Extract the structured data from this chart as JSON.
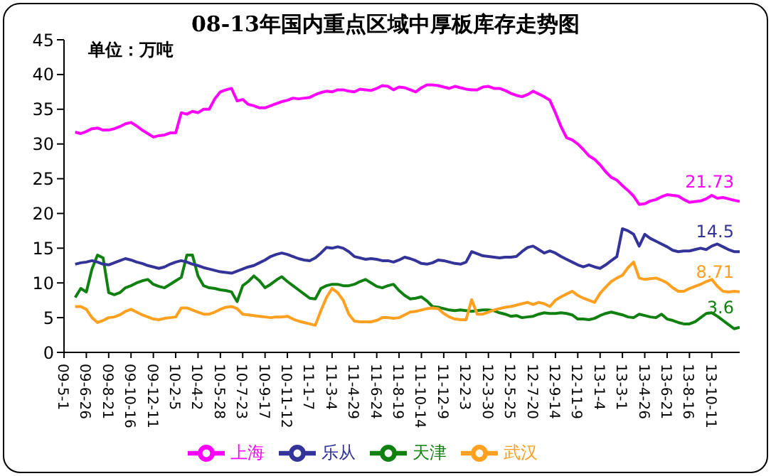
{
  "chart_data": {
    "type": "line",
    "title": "08-13年国内重点区域中厚板库存走势图",
    "ylabel": "单位：万吨",
    "categories": [
      "09-5-1",
      null,
      null,
      null,
      "09-6-26",
      null,
      null,
      null,
      "09-8-21",
      null,
      null,
      null,
      "09-10-16",
      null,
      null,
      null,
      "09-12-11",
      null,
      null,
      null,
      "10-2-5",
      null,
      null,
      null,
      "10-4-2",
      null,
      null,
      null,
      "10-5-28",
      null,
      null,
      null,
      "10-7-23",
      null,
      null,
      null,
      "10-9-17",
      null,
      null,
      null,
      "10-11-12",
      null,
      null,
      null,
      "11-1-7",
      null,
      null,
      null,
      "11-3-4",
      null,
      null,
      null,
      "11-4-29",
      null,
      null,
      null,
      "11-6-24",
      null,
      null,
      null,
      "11-8-19",
      null,
      null,
      null,
      "11-10-14",
      null,
      null,
      null,
      "11-12-9",
      null,
      null,
      null,
      "12-2-3",
      null,
      null,
      null,
      "12-3-30",
      null,
      null,
      null,
      "12-5-25",
      null,
      null,
      null,
      "12-7-20",
      null,
      null,
      null,
      "12-9-14",
      null,
      null,
      null,
      "12-11-9",
      null,
      null,
      null,
      "13-1-4",
      null,
      null,
      null,
      "13-3-1",
      null,
      null,
      null,
      "13-4-26",
      null,
      null,
      null,
      "13-6-21",
      null,
      null,
      null,
      "13-8-16",
      null,
      null,
      null,
      "13-10-11",
      null,
      null,
      null,
      null,
      null
    ],
    "series": [
      {
        "name": "上海",
        "color": "#ff00ff",
        "values": [
          null,
          null,
          31.7,
          31.5,
          31.8,
          32.2,
          32.3,
          32,
          32,
          32.2,
          32.5,
          32.9,
          33.1,
          32.6,
          32,
          31.5,
          31,
          31.2,
          31.3,
          31.6,
          31.6,
          34.5,
          34.3,
          34.7,
          34.5,
          35,
          35,
          36.5,
          37.5,
          37.8,
          38,
          36.2,
          36.4,
          35.7,
          35.5,
          35.2,
          35.2,
          35.5,
          35.8,
          36.1,
          36.3,
          36.6,
          36.5,
          36.6,
          36.7,
          37.1,
          37.4,
          37.6,
          37.5,
          37.8,
          37.8,
          37.6,
          37.5,
          37.9,
          37.8,
          37.7,
          38,
          38.4,
          38.3,
          37.8,
          38.2,
          38.1,
          37.8,
          37.5,
          38.1,
          38.5,
          38.5,
          38.4,
          38.2,
          38,
          38.3,
          38.1,
          37.9,
          37.8,
          37.8,
          38.2,
          38.3,
          38,
          38,
          37.7,
          37.3,
          37,
          36.8,
          37.1,
          37.6,
          37.2,
          36.8,
          36.3,
          34.5,
          32.5,
          30.9,
          30.6,
          30,
          29.2,
          28.3,
          27.8,
          27,
          26,
          25.2,
          24.8,
          24,
          23.3,
          22.5,
          21.3,
          21.4,
          21.8,
          22,
          22.4,
          22.7,
          22.6,
          22.5,
          22,
          21.6,
          21.7,
          21.8,
          22.1,
          22.6,
          22.2,
          22.3,
          22.1,
          21.9,
          21.73
        ],
        "value_labels": [
          null,
          null,
          null,
          null,
          null,
          null,
          null,
          null,
          null,
          null,
          null,
          null,
          null,
          null,
          null,
          null,
          null,
          null,
          null,
          null,
          null,
          null,
          null,
          null,
          null,
          null,
          null,
          null,
          null,
          null,
          null,
          null,
          null,
          null,
          null,
          null,
          null,
          null,
          null,
          null,
          null,
          null,
          null,
          null,
          null,
          null,
          null,
          null,
          null,
          null,
          null,
          null,
          null,
          null,
          null,
          null,
          null,
          null,
          null,
          null,
          null,
          null,
          null,
          null,
          null,
          null,
          null,
          null,
          null,
          null,
          null,
          null,
          null,
          null,
          null,
          null,
          null,
          null,
          null,
          null,
          null,
          null,
          null,
          null,
          null,
          null,
          null,
          null,
          null,
          null,
          null,
          null,
          null,
          null,
          null,
          null,
          null,
          null,
          null,
          null,
          null,
          null,
          null,
          null,
          null,
          null,
          null,
          null,
          null,
          null,
          null,
          null,
          null,
          null,
          null,
          null,
          null,
          null,
          null,
          null,
          null,
          "21.73"
        ]
      },
      {
        "name": "天津",
        "color": "#108010",
        "values": [
          null,
          null,
          7.9,
          9.2,
          8.7,
          12,
          14,
          13.6,
          8.6,
          8.3,
          8.6,
          9.3,
          9.6,
          10,
          10.3,
          10.5,
          9.8,
          9.5,
          9.3,
          9.8,
          10.3,
          10.8,
          14,
          14,
          11,
          9.6,
          9.3,
          9.2,
          9,
          8.9,
          8.7,
          7.3,
          9.6,
          10.2,
          11,
          10.3,
          9.3,
          9.8,
          10.4,
          10.9,
          10.2,
          9.6,
          9,
          8.4,
          7.8,
          7.7,
          9.2,
          9.6,
          9.8,
          9.8,
          9.6,
          9.6,
          9.8,
          10.2,
          10.5,
          10,
          9.5,
          9.3,
          9.6,
          9.8,
          8.9,
          8.2,
          7.7,
          7.8,
          8,
          7.4,
          6.6,
          6.5,
          6.3,
          6.1,
          6,
          6.1,
          6,
          5.9,
          6,
          6.1,
          6.1,
          6,
          5.7,
          5.5,
          5.2,
          5.3,
          5,
          5.1,
          5.2,
          5.5,
          5.7,
          5.6,
          5.6,
          5.7,
          5.6,
          5.4,
          4.8,
          4.8,
          4.7,
          4.9,
          5.3,
          5.6,
          5.8,
          5.6,
          5.4,
          5.1,
          5,
          5.5,
          5.3,
          5.1,
          5,
          5.5,
          4.8,
          4.6,
          4.3,
          4.1,
          4.1,
          4.4,
          5,
          5.6,
          5.7,
          5.2,
          4.6,
          4,
          3.4,
          3.6
        ],
        "value_labels": [
          null,
          null,
          null,
          null,
          null,
          null,
          null,
          null,
          null,
          null,
          null,
          null,
          null,
          null,
          null,
          null,
          null,
          null,
          null,
          null,
          null,
          null,
          null,
          null,
          null,
          null,
          null,
          null,
          null,
          null,
          null,
          null,
          null,
          null,
          null,
          null,
          null,
          null,
          null,
          null,
          null,
          null,
          null,
          null,
          null,
          null,
          null,
          null,
          null,
          null,
          null,
          null,
          null,
          null,
          null,
          null,
          null,
          null,
          null,
          null,
          null,
          null,
          null,
          null,
          null,
          null,
          null,
          null,
          null,
          null,
          null,
          null,
          null,
          null,
          null,
          null,
          null,
          null,
          null,
          null,
          null,
          null,
          null,
          null,
          null,
          null,
          null,
          null,
          null,
          null,
          null,
          null,
          null,
          null,
          null,
          null,
          null,
          null,
          null,
          null,
          null,
          null,
          null,
          null,
          null,
          null,
          null,
          null,
          null,
          null,
          null,
          null,
          null,
          null,
          null,
          null,
          null,
          null,
          null,
          null,
          null,
          "3.6"
        ]
      },
      {
        "name": "武汉",
        "color": "#ffa020",
        "values": [
          null,
          null,
          6.6,
          6.6,
          6.2,
          5,
          4.3,
          4.6,
          5,
          5.1,
          5.4,
          5.9,
          6.2,
          5.8,
          5.4,
          5.1,
          4.8,
          4.7,
          4.9,
          5,
          5.1,
          6.4,
          6.4,
          6.1,
          5.8,
          5.5,
          5.5,
          5.8,
          6.2,
          6.5,
          6.6,
          6.3,
          5.5,
          5.4,
          5.3,
          5.2,
          5.1,
          5,
          5.1,
          5.1,
          5.2,
          4.8,
          4.5,
          4.3,
          4.1,
          3.9,
          6,
          7.9,
          9.2,
          8.6,
          7.5,
          5.5,
          4.5,
          4.4,
          4.4,
          4.4,
          4.6,
          5,
          5,
          4.9,
          5,
          5.4,
          5.8,
          5.9,
          6.1,
          6.3,
          6.4,
          6.3,
          5.6,
          5.1,
          4.8,
          4.7,
          4.7,
          7.6,
          5.5,
          5.5,
          5.8,
          6.1,
          6.3,
          6.5,
          6.6,
          6.8,
          7,
          7.2,
          6.9,
          7.2,
          7,
          6.6,
          7.5,
          8,
          8.4,
          8.8,
          8.2,
          7.8,
          7.5,
          7.2,
          8.5,
          9.4,
          10.2,
          10.7,
          11.1,
          12.2,
          13,
          10.7,
          10.5,
          10.6,
          10.7,
          10.4,
          10,
          9.3,
          8.8,
          8.8,
          9.2,
          9.5,
          9.8,
          10.2,
          10.5,
          9.5,
          8.8,
          8.7,
          8.8,
          8.71
        ],
        "value_labels": [
          null,
          null,
          null,
          null,
          null,
          null,
          null,
          null,
          null,
          null,
          null,
          null,
          null,
          null,
          null,
          null,
          null,
          null,
          null,
          null,
          null,
          null,
          null,
          null,
          null,
          null,
          null,
          null,
          null,
          null,
          null,
          null,
          null,
          null,
          null,
          null,
          null,
          null,
          null,
          null,
          null,
          null,
          null,
          null,
          null,
          null,
          null,
          null,
          null,
          null,
          null,
          null,
          null,
          null,
          null,
          null,
          null,
          null,
          null,
          null,
          null,
          null,
          null,
          null,
          null,
          null,
          null,
          null,
          null,
          null,
          null,
          null,
          null,
          null,
          null,
          null,
          null,
          null,
          null,
          null,
          null,
          null,
          null,
          null,
          null,
          null,
          null,
          null,
          null,
          null,
          null,
          null,
          null,
          null,
          null,
          null,
          null,
          null,
          null,
          null,
          null,
          null,
          null,
          null,
          null,
          null,
          null,
          null,
          null,
          null,
          null,
          null,
          null,
          null,
          null,
          null,
          null,
          null,
          null,
          null,
          null,
          "8.71"
        ]
      },
      {
        "name": "乐从",
        "color": "#333399",
        "values": [
          null,
          null,
          12.7,
          12.9,
          13,
          13.2,
          13,
          12.7,
          12.6,
          12.9,
          13.2,
          13.5,
          13.3,
          13,
          12.8,
          12.5,
          12.3,
          12.1,
          12.3,
          12.7,
          13,
          13.2,
          13,
          12.7,
          12.5,
          12.2,
          12,
          11.8,
          11.6,
          11.5,
          11.4,
          11.7,
          12,
          12.3,
          12.5,
          12.9,
          13.3,
          13.8,
          14.1,
          14.3,
          14.1,
          13.8,
          13.5,
          13.3,
          13.2,
          13.6,
          14.3,
          15.1,
          15,
          15.2,
          15,
          14.5,
          13.8,
          13.6,
          13.4,
          13.5,
          13.4,
          13.2,
          13.2,
          13,
          13.3,
          13.7,
          13.5,
          13.2,
          12.8,
          12.7,
          12.9,
          13.3,
          13.2,
          13,
          12.8,
          12.7,
          13,
          14.5,
          14.2,
          13.9,
          13.8,
          13.7,
          13.6,
          13.7,
          13.7,
          13.8,
          14.5,
          15.1,
          15.3,
          14.8,
          14.3,
          14.6,
          14.3,
          13.8,
          13.4,
          13,
          12.6,
          12.3,
          12.6,
          12.3,
          12.1,
          12.6,
          13.2,
          13.8,
          17.8,
          17.5,
          17,
          15.3,
          17,
          16.4,
          16,
          15.6,
          15.2,
          14.7,
          14.5,
          14.6,
          14.6,
          14.8,
          15,
          14.8,
          15.3,
          15.6,
          15.2,
          14.8,
          14.5,
          14.5
        ],
        "value_labels": [
          null,
          null,
          null,
          null,
          null,
          null,
          null,
          null,
          null,
          null,
          null,
          null,
          null,
          null,
          null,
          null,
          null,
          null,
          null,
          null,
          null,
          null,
          null,
          null,
          null,
          null,
          null,
          null,
          null,
          null,
          null,
          null,
          null,
          null,
          null,
          null,
          null,
          null,
          null,
          null,
          null,
          null,
          null,
          null,
          null,
          null,
          null,
          null,
          null,
          null,
          null,
          null,
          null,
          null,
          null,
          null,
          null,
          null,
          null,
          null,
          null,
          null,
          null,
          null,
          null,
          null,
          null,
          null,
          null,
          null,
          null,
          null,
          null,
          null,
          null,
          null,
          null,
          null,
          null,
          null,
          null,
          null,
          null,
          null,
          null,
          null,
          null,
          null,
          null,
          null,
          null,
          null,
          null,
          null,
          null,
          null,
          null,
          null,
          null,
          null,
          null,
          null,
          null,
          null,
          null,
          null,
          null,
          null,
          null,
          null,
          null,
          null,
          null,
          null,
          null,
          null,
          null,
          null,
          null,
          null,
          null,
          "14.5"
        ]
      }
    ],
    "ylim": [
      0,
      45
    ],
    "yticks": [
      0,
      5,
      10,
      15,
      20,
      25,
      30,
      35,
      40,
      45
    ],
    "grid": false,
    "legend": "bottom",
    "marker": "none",
    "line_style": "solid"
  }
}
